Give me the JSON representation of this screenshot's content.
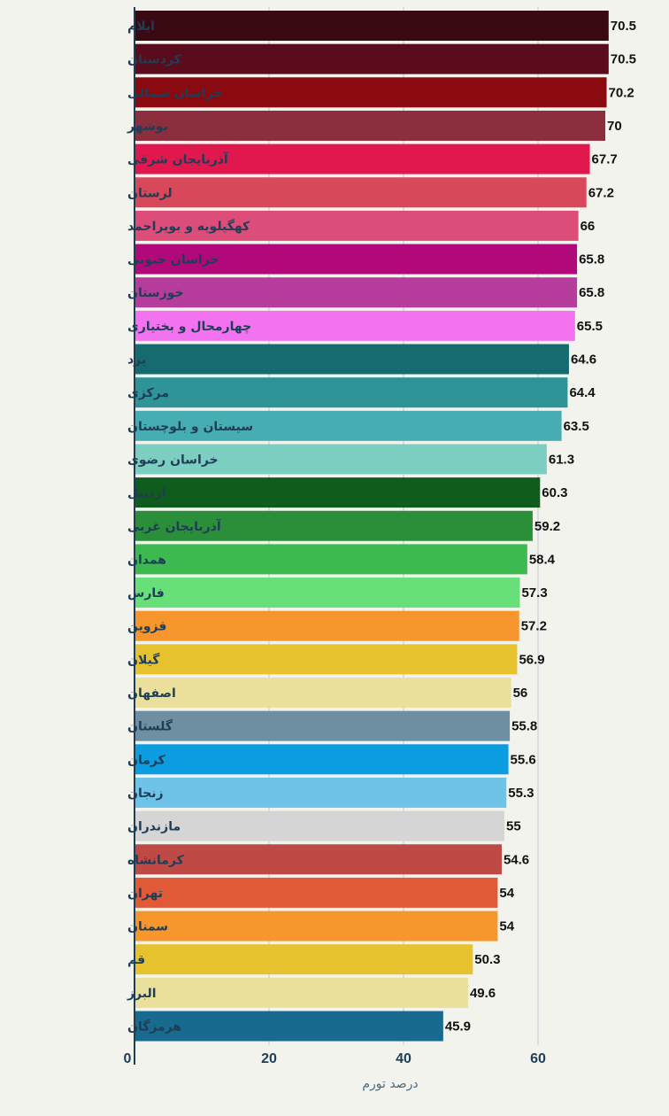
{
  "chart_data": {
    "type": "bar",
    "orientation": "horizontal",
    "title": "",
    "xlabel": "درصد تورم",
    "ylabel": "",
    "xlim": [
      0,
      72
    ],
    "xticks": [
      0,
      20,
      40,
      60
    ],
    "grid": true,
    "legend": "none",
    "categories": [
      "ایلام",
      "کردستان",
      "خراسان شمالی",
      "بوشهر",
      "آذربایجان شرقی",
      "لرستان",
      "کهگیلویه و بویراحمد",
      "خراسان جنوبی",
      "خوزستان",
      "چهارمحال و بختیاری",
      "یزد",
      "مرکزی",
      "سیستان و بلوچستان",
      "خراسان رضوی",
      "اردبیل",
      "آذربایجان غربی",
      "همدان",
      "فارس",
      "قزوین",
      "گیلان",
      "اصفهان",
      "گلستان",
      "کرمان",
      "زنجان",
      "مازندران",
      "کرمانشاه",
      "تهران",
      "سمنان",
      "قم",
      "البرز",
      "هرمزگان"
    ],
    "values": [
      70.5,
      70.5,
      70.2,
      70,
      67.7,
      67.2,
      66,
      65.8,
      65.8,
      65.5,
      64.6,
      64.4,
      63.5,
      61.3,
      60.3,
      59.2,
      58.4,
      57.3,
      57.2,
      56.9,
      56,
      55.8,
      55.6,
      55.3,
      55,
      54.6,
      54,
      54,
      50.3,
      49.6,
      45.9
    ],
    "value_labels": [
      "70.5",
      "70.5",
      "70.2",
      "70",
      "67.7",
      "67.2",
      "66",
      "65.8",
      "65.8",
      "65.5",
      "64.6",
      "64.4",
      "63.5",
      "61.3",
      "60.3",
      "59.2",
      "58.4",
      "57.3",
      "57.2",
      "56.9",
      "56",
      "55.8",
      "55.6",
      "55.3",
      "55",
      "54.6",
      "54",
      "54",
      "50.3",
      "49.6",
      "45.9"
    ],
    "colors": [
      "#3a0a12",
      "#5a0b1c",
      "#8b0a0f",
      "#8c2e3e",
      "#e0184e",
      "#d6485a",
      "#dc4d7a",
      "#b2097a",
      "#b73d9c",
      "#f272f0",
      "#156b6e",
      "#2f9498",
      "#46adb2",
      "#7ccfc0",
      "#0f5c1c",
      "#2b8f3a",
      "#3dba4f",
      "#68e07a",
      "#f6962c",
      "#e5c22e",
      "#ebdf9c",
      "#6e8fa2",
      "#0c9ce0",
      "#6fc3e8",
      "#d5d5d5",
      "#bf4a45",
      "#e05a38",
      "#f6962c",
      "#e5c22e",
      "#ebdf9c",
      "#186a8e"
    ]
  }
}
